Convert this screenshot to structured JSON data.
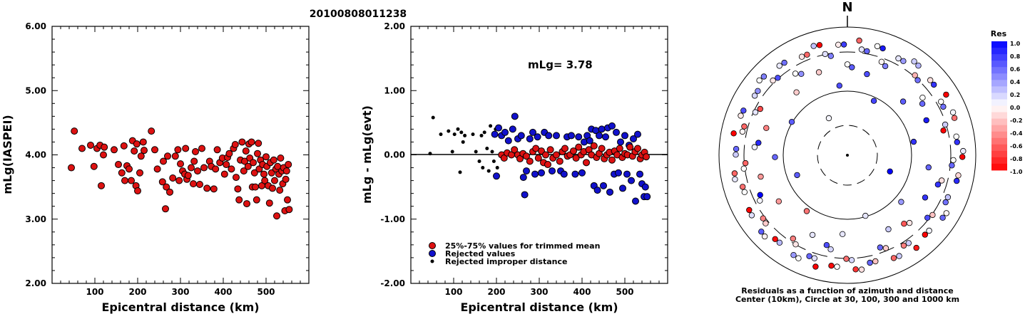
{
  "event_id": "20100808011238",
  "panels": {
    "left": {
      "ylabel": "mLg(IASPEI)",
      "xlabel": "Epicentral distance (km)",
      "xticks": [
        "100",
        "200",
        "300",
        "400",
        "500"
      ],
      "yticks": [
        "6.00",
        "5.00",
        "4.00",
        "3.00",
        "2.00"
      ]
    },
    "middle": {
      "ylabel": "mLg - mLg(evt)",
      "xlabel": "Epicentral distance (km)",
      "xticks": [
        "100",
        "200",
        "300",
        "400",
        "500"
      ],
      "yticks": [
        "2.00",
        "1.00",
        "0.00",
        "-1.00",
        "-2.00"
      ],
      "annotation": "mLg= 3.78",
      "legend": {
        "trimmed": "25%-75% values for trimmed mean",
        "rejected": "Rejected values",
        "improper": "Rejected improper distance"
      }
    },
    "right": {
      "north_label": "N",
      "caption_line1": "Residuals as a function of azimuth and distance",
      "caption_line2": "Center (10km), Circle at 30, 100, 300 and 1000 km"
    },
    "colorbar": {
      "title": "Res",
      "ticks": [
        "1.0",
        "0.8",
        "0.6",
        "0.4",
        "0.2",
        "0.0",
        "-0.2",
        "-0.4",
        "-0.6",
        "-0.8",
        "-1.0"
      ]
    }
  },
  "colors": {
    "trimmed": "#dd1111",
    "rejected": "#1111cc",
    "improper": "#000000"
  },
  "chart_data": [
    {
      "type": "scatter",
      "title": "20100808011238",
      "xlabel": "Epicentral distance (km)",
      "ylabel": "mLg(IASPEI)",
      "xlim": [
        0,
        600
      ],
      "ylim": [
        2,
        6
      ],
      "grid": false,
      "series": [
        {
          "points": [
            [
              45,
              3.8
            ],
            [
              52,
              4.37
            ],
            [
              70,
              4.1
            ],
            [
              90,
              4.15
            ],
            [
              98,
              3.82
            ],
            [
              105,
              4.1
            ],
            [
              112,
              4.15
            ],
            [
              115,
              3.52
            ],
            [
              120,
              4.0
            ],
            [
              122,
              4.12
            ],
            [
              145,
              4.08
            ],
            [
              155,
              3.85
            ],
            [
              163,
              3.72
            ],
            [
              168,
              4.14
            ],
            [
              170,
              3.6
            ],
            [
              175,
              3.83
            ],
            [
              180,
              3.78
            ],
            [
              185,
              3.6
            ],
            [
              188,
              4.22
            ],
            [
              192,
              4.06
            ],
            [
              196,
              3.52
            ],
            [
              198,
              4.17
            ],
            [
              200,
              3.44
            ],
            [
              205,
              3.72
            ],
            [
              208,
              3.98
            ],
            [
              213,
              4.2
            ],
            [
              215,
              4.07
            ],
            [
              232,
              4.37
            ],
            [
              240,
              4.08
            ],
            [
              246,
              3.78
            ],
            [
              258,
              3.58
            ],
            [
              260,
              3.9
            ],
            [
              265,
              3.16
            ],
            [
              267,
              3.5
            ],
            [
              270,
              3.98
            ],
            [
              275,
              3.42
            ],
            [
              282,
              3.64
            ],
            [
              288,
              3.98
            ],
            [
              294,
              4.08
            ],
            [
              297,
              3.6
            ],
            [
              300,
              3.86
            ],
            [
              305,
              3.75
            ],
            [
              310,
              3.7
            ],
            [
              312,
              4.1
            ],
            [
              315,
              3.62
            ],
            [
              318,
              3.68
            ],
            [
              325,
              3.8
            ],
            [
              330,
              3.55
            ],
            [
              332,
              3.9
            ],
            [
              335,
              4.05
            ],
            [
              340,
              3.75
            ],
            [
              345,
              3.54
            ],
            [
              350,
              4.1
            ],
            [
              355,
              3.8
            ],
            [
              362,
              3.48
            ],
            [
              368,
              3.9
            ],
            [
              372,
              3.82
            ],
            [
              378,
              3.47
            ],
            [
              382,
              3.78
            ],
            [
              386,
              4.08
            ],
            [
              392,
              3.88
            ],
            [
              398,
              3.95
            ],
            [
              403,
              3.7
            ],
            [
              407,
              3.85
            ],
            [
              410,
              3.96
            ],
            [
              414,
              4.02
            ],
            [
              419,
              3.78
            ],
            [
              424,
              4.1
            ],
            [
              428,
              4.16
            ],
            [
              430,
              3.65
            ],
            [
              434,
              3.47
            ],
            [
              437,
              3.3
            ],
            [
              440,
              3.92
            ],
            [
              444,
              4.2
            ],
            [
              448,
              3.75
            ],
            [
              450,
              3.9
            ],
            [
              453,
              4.06
            ],
            [
              455,
              3.24
            ],
            [
              458,
              3.82
            ],
            [
              460,
              4.17
            ],
            [
              462,
              3.95
            ],
            [
              466,
              4.2
            ],
            [
              468,
              3.5
            ],
            [
              470,
              3.88
            ],
            [
              473,
              3.72
            ],
            [
              475,
              3.5
            ],
            [
              478,
              3.3
            ],
            [
              480,
              4.02
            ],
            [
              482,
              4.18
            ],
            [
              484,
              3.78
            ],
            [
              487,
              3.92
            ],
            [
              490,
              3.52
            ],
            [
              492,
              3.85
            ],
            [
              495,
              3.7
            ],
            [
              497,
              3.6
            ],
            [
              500,
              3.97
            ],
            [
              502,
              3.82
            ],
            [
              505,
              3.52
            ],
            [
              508,
              3.25
            ],
            [
              510,
              3.88
            ],
            [
              513,
              3.72
            ],
            [
              515,
              3.48
            ],
            [
              518,
              3.92
            ],
            [
              520,
              3.6
            ],
            [
              523,
              3.78
            ],
            [
              525,
              3.05
            ],
            [
              527,
              3.82
            ],
            [
              530,
              3.7
            ],
            [
              532,
              3.45
            ],
            [
              534,
              3.95
            ],
            [
              537,
              3.75
            ],
            [
              539,
              3.55
            ],
            [
              541,
              3.8
            ],
            [
              544,
              3.13
            ],
            [
              546,
              3.62
            ],
            [
              548,
              3.75
            ],
            [
              550,
              3.3
            ],
            [
              552,
              3.85
            ],
            [
              554,
              3.15
            ]
          ]
        }
      ]
    },
    {
      "type": "scatter",
      "xlabel": "Epicentral distance (km)",
      "ylabel": "mLg - mLg(evt)",
      "xlim": [
        0,
        600
      ],
      "ylim": [
        -2,
        2
      ],
      "grid": false,
      "series": [
        {
          "name": "25%-75% values for trimmed mean",
          "points": [
            [
              212,
              0.0
            ],
            [
              218,
              -0.05
            ],
            [
              225,
              0.03
            ],
            [
              235,
              0.0
            ],
            [
              242,
              0.08
            ],
            [
              250,
              0.0
            ],
            [
              255,
              -0.06
            ],
            [
              262,
              0.02
            ],
            [
              270,
              -0.02
            ],
            [
              278,
              -0.1
            ],
            [
              285,
              0.05
            ],
            [
              292,
              0.1
            ],
            [
              298,
              -0.05
            ],
            [
              305,
              0.06
            ],
            [
              310,
              -0.12
            ],
            [
              315,
              0.0
            ],
            [
              320,
              -0.15
            ],
            [
              326,
              0.08
            ],
            [
              332,
              -0.05
            ],
            [
              340,
              0.0
            ],
            [
              348,
              -0.1
            ],
            [
              354,
              0.05
            ],
            [
              360,
              0.1
            ],
            [
              366,
              -0.02
            ],
            [
              372,
              0.0
            ],
            [
              380,
              0.06
            ],
            [
              386,
              -0.05
            ],
            [
              392,
              0.12
            ],
            [
              398,
              0.0
            ],
            [
              404,
              0.05
            ],
            [
              410,
              -0.12
            ],
            [
              416,
              0.08
            ],
            [
              422,
              0.0
            ],
            [
              428,
              0.14
            ],
            [
              434,
              -0.04
            ],
            [
              440,
              0.02
            ],
            [
              446,
              0.1
            ],
            [
              452,
              -0.06
            ],
            [
              458,
              0.0
            ],
            [
              464,
              0.04
            ],
            [
              470,
              -0.08
            ],
            [
              476,
              0.06
            ],
            [
              482,
              0.0
            ],
            [
              488,
              0.1
            ],
            [
              494,
              -0.04
            ],
            [
              500,
              0.02
            ],
            [
              506,
              0.0
            ],
            [
              512,
              0.12
            ],
            [
              518,
              -0.02
            ],
            [
              524,
              0.05
            ],
            [
              530,
              0.1
            ],
            [
              536,
              -0.06
            ],
            [
              540,
              0.0
            ],
            [
              546,
              0.04
            ],
            [
              550,
              -0.03
            ]
          ]
        },
        {
          "name": "Rejected values",
          "points": [
            [
              196,
              0.32
            ],
            [
              200,
              -0.33
            ],
            [
              205,
              0.42
            ],
            [
              212,
              0.3
            ],
            [
              220,
              0.35
            ],
            [
              228,
              0.22
            ],
            [
              238,
              0.4
            ],
            [
              243,
              0.6
            ],
            [
              250,
              0.25
            ],
            [
              258,
              0.3
            ],
            [
              263,
              -0.35
            ],
            [
              266,
              -0.62
            ],
            [
              270,
              -0.25
            ],
            [
              278,
              0.25
            ],
            [
              285,
              0.35
            ],
            [
              290,
              -0.3
            ],
            [
              296,
              0.28
            ],
            [
              305,
              -0.28
            ],
            [
              312,
              0.35
            ],
            [
              322,
              0.3
            ],
            [
              330,
              -0.25
            ],
            [
              340,
              0.3
            ],
            [
              350,
              -0.25
            ],
            [
              358,
              -0.3
            ],
            [
              365,
              0.28
            ],
            [
              375,
              0.3
            ],
            [
              384,
              -0.3
            ],
            [
              392,
              0.28
            ],
            [
              400,
              -0.28
            ],
            [
              405,
              0.2
            ],
            [
              412,
              0.3
            ],
            [
              418,
              0.22
            ],
            [
              422,
              0.4
            ],
            [
              428,
              -0.48
            ],
            [
              432,
              0.38
            ],
            [
              436,
              -0.55
            ],
            [
              440,
              0.3
            ],
            [
              446,
              0.4
            ],
            [
              450,
              -0.48
            ],
            [
              455,
              0.28
            ],
            [
              460,
              0.42
            ],
            [
              465,
              -0.58
            ],
            [
              470,
              0.45
            ],
            [
              475,
              -0.3
            ],
            [
              480,
              0.35
            ],
            [
              485,
              -0.28
            ],
            [
              490,
              0.2
            ],
            [
              495,
              -0.52
            ],
            [
              500,
              0.3
            ],
            [
              505,
              -0.3
            ],
            [
              510,
              0.15
            ],
            [
              515,
              -0.4
            ],
            [
              520,
              0.25
            ],
            [
              525,
              -0.72
            ],
            [
              530,
              0.32
            ],
            [
              535,
              -0.3
            ],
            [
              540,
              -0.45
            ],
            [
              545,
              -0.65
            ],
            [
              548,
              -0.5
            ],
            [
              552,
              -0.65
            ]
          ]
        },
        {
          "name": "Rejected improper distance",
          "points": [
            [
              45,
              0.02
            ],
            [
              52,
              0.58
            ],
            [
              70,
              0.32
            ],
            [
              88,
              0.37
            ],
            [
              97,
              0.05
            ],
            [
              102,
              0.32
            ],
            [
              110,
              0.4
            ],
            [
              115,
              -0.27
            ],
            [
              118,
              0.35
            ],
            [
              122,
              0.2
            ],
            [
              126,
              0.3
            ],
            [
              145,
              0.32
            ],
            [
              152,
              0.05
            ],
            [
              160,
              -0.1
            ],
            [
              165,
              0.3
            ],
            [
              168,
              -0.2
            ],
            [
              172,
              0.35
            ],
            [
              178,
              0.1
            ],
            [
              182,
              -0.25
            ],
            [
              186,
              0.45
            ],
            [
              190,
              0.05
            ],
            [
              194,
              -0.1
            ],
            [
              198,
              0.4
            ],
            [
              202,
              -0.2
            ]
          ]
        }
      ]
    }
  ]
}
